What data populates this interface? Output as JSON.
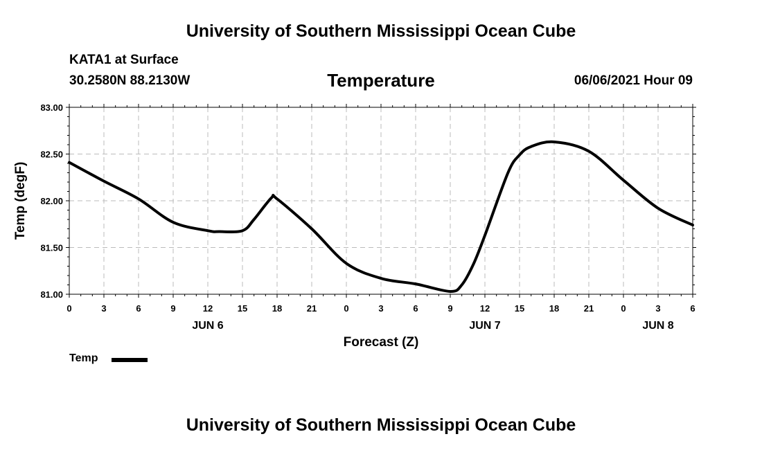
{
  "header": {
    "title": "University of Southern Mississippi Ocean Cube",
    "station": "KATA1 at Surface",
    "coords": "30.2580N  88.2130W",
    "chart_title": "Temperature",
    "datetime": "06/06/2021 Hour 09"
  },
  "footer": {
    "title": "University of Southern Mississippi Ocean Cube"
  },
  "legend": {
    "label": "Temp"
  },
  "chart_data": {
    "type": "line",
    "title": "Temperature",
    "xlabel": "Forecast (Z)",
    "ylabel": "Temp (degF)",
    "xlim": [
      0,
      54
    ],
    "ylim": [
      81.0,
      83.0
    ],
    "y_ticks": [
      "81.00",
      "81.50",
      "82.00",
      "82.50",
      "83.00"
    ],
    "x_ticks": [
      "0",
      "3",
      "6",
      "9",
      "12",
      "15",
      "18",
      "21",
      "0",
      "3",
      "6",
      "9",
      "12",
      "15",
      "18",
      "21",
      "0",
      "3",
      "6"
    ],
    "date_labels": [
      {
        "label": "JUN 6",
        "hour": 12
      },
      {
        "label": "JUN 7",
        "hour": 36
      },
      {
        "label": "JUN 8",
        "hour": 51
      }
    ],
    "grid": true,
    "legend_position": "bottom-left",
    "series": [
      {
        "name": "Temp",
        "color": "#000000",
        "x": [
          0,
          3,
          6,
          9,
          12,
          13,
          15,
          16,
          17.5,
          18,
          21,
          24,
          27,
          30,
          33,
          34,
          35,
          36,
          38,
          39,
          40,
          42,
          45,
          48,
          51,
          54
        ],
        "y": [
          82.41,
          82.21,
          82.02,
          81.77,
          81.68,
          81.67,
          81.68,
          81.8,
          82.03,
          82.02,
          81.7,
          81.33,
          81.17,
          81.11,
          81.03,
          81.1,
          81.32,
          81.63,
          82.3,
          82.49,
          82.58,
          82.63,
          82.53,
          82.22,
          81.92,
          81.74
        ]
      }
    ]
  }
}
